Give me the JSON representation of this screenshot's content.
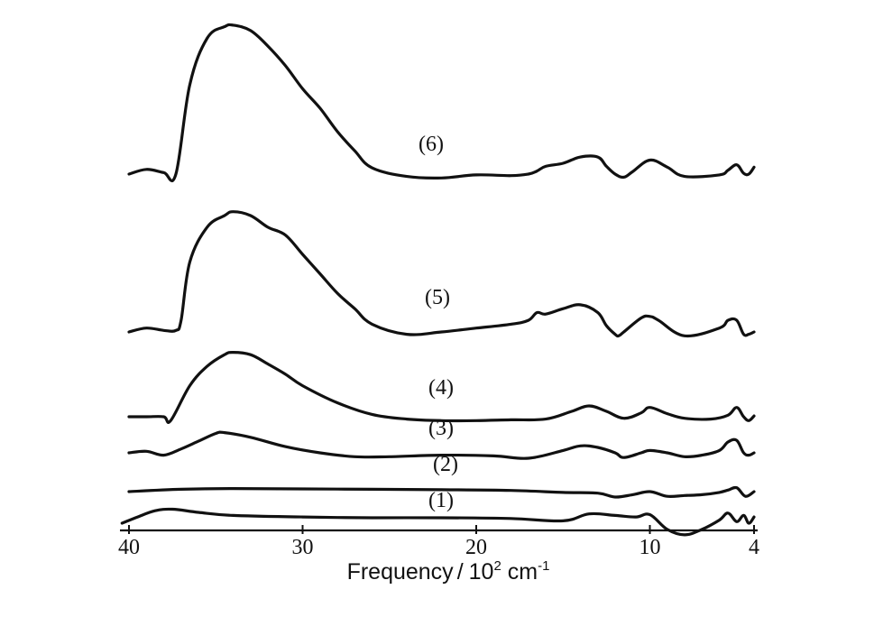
{
  "chart_data": {
    "type": "line",
    "title": "",
    "xlabel": "Frequency / 10² cm⁻¹",
    "xlabel_parts": {
      "main": "Frequency",
      "sep": "/",
      "unit_base": "10",
      "unit_exp": "2",
      "unit_mid": " cm",
      "unit_exp2": "-1"
    },
    "ylabel": "",
    "x_ticks": [
      40,
      30,
      20,
      10,
      4
    ],
    "x_tick_labels": [
      "40",
      "30",
      "20",
      "10",
      "4"
    ],
    "xlim": [
      40,
      4
    ],
    "x_reversed": true,
    "y_axis_shown": false,
    "grid": false,
    "legend": "none (curves labelled inline)",
    "series": [
      {
        "name": "(1)",
        "x": [
          40.4,
          39.5,
          38.5,
          37.5,
          36,
          34,
          30,
          26,
          22,
          18,
          15,
          13.5,
          12,
          10.8,
          10,
          9,
          8,
          7,
          6,
          5.5,
          5,
          4.6,
          4.3,
          4
        ],
        "y": [
          0.0,
          0.8,
          1.6,
          1.8,
          1.4,
          1.0,
          0.8,
          0.7,
          0.7,
          0.6,
          0.3,
          1.2,
          1.0,
          0.8,
          1.1,
          -0.8,
          -1.5,
          -0.8,
          0.4,
          1.3,
          0.2,
          1.0,
          0.0,
          0.8
        ]
      },
      {
        "name": "(2)",
        "x": [
          40,
          37,
          34,
          30,
          26,
          22,
          18,
          15,
          13,
          12,
          11,
          10,
          9,
          8,
          7,
          6,
          5.5,
          5,
          4.5,
          4
        ],
        "y": [
          0.0,
          0.3,
          0.4,
          0.35,
          0.3,
          0.25,
          0.15,
          -0.1,
          -0.2,
          -0.7,
          -0.4,
          0.0,
          -0.6,
          -0.5,
          -0.4,
          -0.1,
          0.2,
          0.5,
          -0.6,
          0.0
        ]
      },
      {
        "name": "(3)",
        "x": [
          40,
          39,
          38,
          37,
          36,
          35,
          34.5,
          33,
          31,
          29,
          27,
          25,
          22,
          19,
          17,
          15,
          14,
          13,
          12,
          11.5,
          10.5,
          10,
          9,
          8,
          7,
          6,
          5.5,
          5,
          4.6,
          4.3,
          4
        ],
        "y": [
          0.0,
          0.2,
          -0.3,
          0.5,
          1.5,
          2.5,
          2.6,
          2.0,
          0.8,
          0.0,
          -0.5,
          -0.5,
          -0.3,
          -0.4,
          -0.7,
          0.3,
          0.9,
          0.7,
          0.0,
          -0.6,
          0.0,
          0.3,
          0.0,
          -0.5,
          -0.3,
          0.3,
          1.4,
          1.6,
          0.0,
          -0.3,
          0.0
        ]
      },
      {
        "name": "(4)",
        "x": [
          40,
          39,
          38,
          37.6,
          36.5,
          35.5,
          34.5,
          34,
          33,
          32,
          31,
          30,
          28,
          26,
          24,
          22,
          20,
          18,
          16,
          14.5,
          13.5,
          12.5,
          11.5,
          10.5,
          10,
          9,
          8,
          6.5,
          5.5,
          5,
          4.6,
          4.3,
          4
        ],
        "y": [
          0.0,
          0.0,
          0.0,
          -0.5,
          4.0,
          6.5,
          8.0,
          8.3,
          8.0,
          6.8,
          5.5,
          4.0,
          1.8,
          0.3,
          -0.3,
          -0.5,
          -0.5,
          -0.4,
          -0.3,
          0.7,
          1.4,
          0.7,
          -0.2,
          0.5,
          1.2,
          0.4,
          -0.2,
          -0.3,
          0.2,
          1.2,
          0.0,
          -0.5,
          0.1
        ]
      },
      {
        "name": "(5)",
        "x": [
          40,
          39,
          38,
          37.3,
          37,
          36.5,
          35.5,
          34.5,
          34,
          33,
          32,
          31,
          30,
          29,
          28,
          27,
          26,
          24,
          22,
          20,
          18,
          17,
          16.5,
          16,
          15,
          14,
          13,
          12.5,
          12,
          11.8,
          11.5,
          10.5,
          10,
          9.5,
          8,
          6,
          5.5,
          5,
          4.6,
          4.3,
          4
        ],
        "y": [
          0.0,
          0.5,
          0.2,
          0.2,
          1.5,
          9.0,
          13.5,
          15.0,
          15.5,
          15.0,
          13.5,
          12.5,
          10.0,
          7.5,
          5.0,
          3.0,
          1.0,
          -0.3,
          0.0,
          0.5,
          1.0,
          1.5,
          2.5,
          2.3,
          3.0,
          3.5,
          2.5,
          0.8,
          -0.3,
          -0.5,
          0.0,
          1.8,
          2.0,
          1.5,
          -0.5,
          0.5,
          1.5,
          1.5,
          -0.3,
          -0.3,
          0.0
        ]
      },
      {
        "name": "(6)",
        "x": [
          40,
          39,
          38,
          37.3,
          36.5,
          35.5,
          34.5,
          34,
          33,
          32,
          31,
          30,
          29,
          28,
          27,
          26,
          24,
          22,
          20,
          18,
          17,
          16.5,
          16,
          15,
          14,
          13,
          12.5,
          12,
          11.5,
          11,
          10,
          9,
          8,
          6,
          5.5,
          5,
          4.6,
          4.3,
          4
        ],
        "y": [
          0.0,
          0.6,
          0.2,
          0.0,
          11.5,
          17.5,
          19.0,
          19.2,
          18.5,
          16.5,
          14.0,
          11.0,
          8.5,
          5.5,
          3.0,
          0.8,
          -0.3,
          -0.5,
          -0.1,
          -0.2,
          0.0,
          0.4,
          1.0,
          1.4,
          2.2,
          2.2,
          1.0,
          0.0,
          -0.4,
          0.3,
          1.8,
          0.9,
          -0.3,
          -0.1,
          0.5,
          1.2,
          0.1,
          0.0,
          0.9
        ]
      }
    ],
    "curve_labels": [
      "(1)",
      "(2)",
      "(3)",
      "(4)",
      "(5)",
      "(6)"
    ]
  }
}
